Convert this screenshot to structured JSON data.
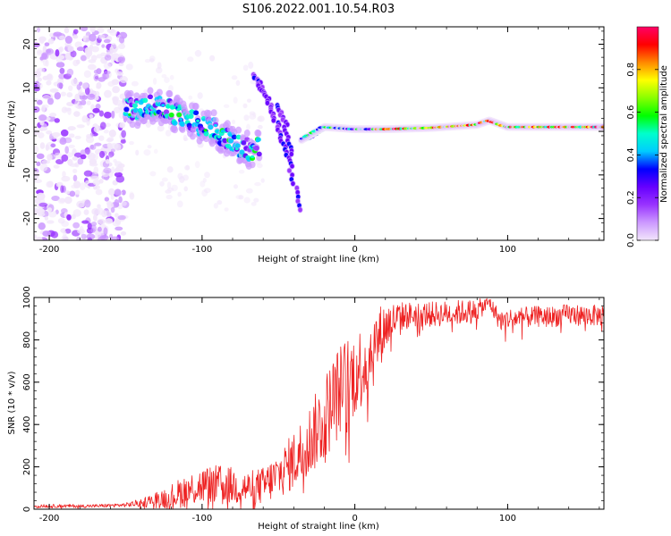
{
  "title": "S106.2022.001.10.54.R03",
  "chart_data": [
    {
      "type": "heatmap",
      "xlabel": "Height of straight line (km)",
      "ylabel": "Frequency (Hz)",
      "xlim": [
        -210,
        163
      ],
      "ylim": [
        -25,
        24
      ],
      "xticks": [
        -200,
        -100,
        0,
        100
      ],
      "xtick_labels": [
        "-200",
        "-100",
        "0",
        "100"
      ],
      "yticks": [
        -20,
        -10,
        0,
        10,
        20
      ],
      "ytick_labels": [
        "-20",
        "-10",
        "0",
        "10",
        "20"
      ],
      "colorbar": {
        "label": "Normalized spectral amplitude",
        "range": [
          0,
          1
        ],
        "ticks": [
          0.0,
          0.2,
          0.4,
          0.6,
          0.8
        ],
        "tick_labels": [
          "0.0",
          "0.2",
          "0.4",
          "0.6",
          "0.8"
        ],
        "colors": [
          "#f2e6fb",
          "#cc99ff",
          "#9933ff",
          "#6600ff",
          "#0000ff",
          "#00ccff",
          "#00ffcc",
          "#00ff00",
          "#88ff00",
          "#ffff00",
          "#ff8800",
          "#ff0000",
          "#ff0066"
        ]
      },
      "features": [
        {
          "name": "broadband scatter",
          "x_range": [
            -210,
            -150
          ],
          "y_range": [
            -25,
            24
          ],
          "amplitude": 0.05
        },
        {
          "name": "descending branch",
          "x": [
            -150,
            -130,
            -110,
            -90,
            -75,
            -62
          ],
          "y": [
            5,
            6,
            3,
            0,
            -4,
            -4
          ],
          "amplitude": 0.45
        },
        {
          "name": "arc 1",
          "x": [
            -66,
            -58,
            -50,
            -42,
            -36
          ],
          "y": [
            13,
            8,
            1,
            -8,
            -19
          ],
          "amplitude": 0.25
        },
        {
          "name": "arc 2",
          "x": [
            -50,
            -45,
            -40
          ],
          "y": [
            6,
            1,
            -6
          ],
          "amplitude": 0.3
        },
        {
          "name": "carrier line",
          "x": [
            -35,
            -20,
            0,
            20,
            50,
            80,
            88,
            100,
            130,
            163
          ],
          "y": [
            -2,
            1,
            0.5,
            0.5,
            0.8,
            1.5,
            2.5,
            1,
            1,
            1
          ],
          "amplitude": 0.75
        }
      ]
    },
    {
      "type": "line",
      "xlabel": "Height of straight line (km)",
      "ylabel": "SNR (10 * v/v)",
      "xlim": [
        -210,
        163
      ],
      "ylim": [
        0,
        1000
      ],
      "xticks": [
        -200,
        -100,
        0,
        100
      ],
      "xtick_labels": [
        "-200",
        "-100",
        "0",
        "100"
      ],
      "yticks": [
        0,
        200,
        400,
        600,
        800,
        1000
      ],
      "ytick_labels": [
        "0",
        "200",
        "400",
        "600",
        "800",
        "1000"
      ],
      "series": [
        {
          "color": "#ee2222",
          "x": [
            -210,
            -190,
            -170,
            -150,
            -140,
            -130,
            -120,
            -110,
            -100,
            -90,
            -80,
            -70,
            -60,
            -50,
            -40,
            -30,
            -20,
            -15,
            -10,
            -5,
            0,
            5,
            10,
            15,
            20,
            25,
            30,
            40,
            50,
            60,
            70,
            80,
            85,
            88,
            90,
            95,
            100,
            110,
            120,
            130,
            140,
            150,
            163
          ],
          "y": [
            15,
            15,
            15,
            20,
            30,
            45,
            60,
            90,
            110,
            120,
            110,
            100,
            110,
            160,
            230,
            320,
            430,
            500,
            560,
            600,
            640,
            680,
            730,
            800,
            860,
            890,
            910,
            920,
            920,
            925,
            930,
            940,
            960,
            980,
            950,
            890,
            900,
            905,
            910,
            910,
            920,
            915,
            915
          ],
          "noise_amplitude": [
            8,
            8,
            8,
            10,
            20,
            40,
            60,
            80,
            90,
            90,
            90,
            80,
            90,
            110,
            140,
            170,
            200,
            220,
            220,
            220,
            200,
            200,
            200,
            160,
            120,
            90,
            70,
            60,
            60,
            60,
            60,
            50,
            40,
            30,
            40,
            50,
            50,
            50,
            50,
            50,
            50,
            50,
            50
          ]
        }
      ]
    }
  ]
}
